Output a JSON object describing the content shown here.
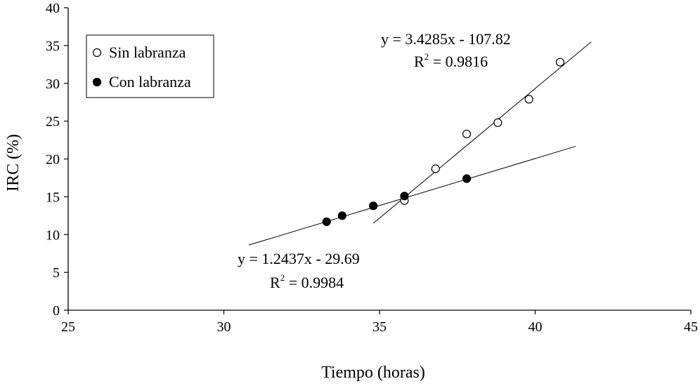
{
  "chart_data": {
    "type": "scatter",
    "xlabel": "Tiempo (horas)",
    "ylabel": "IRC (%)",
    "xlim": [
      25,
      45
    ],
    "ylim": [
      0,
      40
    ],
    "xticks": [
      25,
      30,
      35,
      40,
      45
    ],
    "yticks": [
      0,
      5,
      10,
      15,
      20,
      25,
      30,
      35,
      40
    ],
    "grid": false,
    "legend_position": "top-left",
    "series": [
      {
        "name": "Sin labranza",
        "marker": "open-circle",
        "x": [
          35.8,
          36.8,
          37.8,
          38.8,
          39.8,
          40.8
        ],
        "y": [
          14.5,
          18.7,
          23.3,
          24.8,
          27.9,
          32.8
        ],
        "trendline": {
          "slope": 3.4285,
          "intercept": -107.82,
          "x_range": [
            34.8,
            41.8
          ],
          "equation": "y = 3.4285x - 107.82",
          "r2_prefix": "R",
          "r2_sup": "2",
          "r2_value": " = 0.9816"
        }
      },
      {
        "name": "Con labranza",
        "marker": "filled-circle",
        "x": [
          33.3,
          33.8,
          34.8,
          35.8,
          37.8
        ],
        "y": [
          11.7,
          12.5,
          13.8,
          15.1,
          17.4
        ],
        "trendline": {
          "slope": 1.2437,
          "intercept": -29.69,
          "x_range": [
            30.8,
            41.3
          ],
          "equation": "y = 1.2437x - 29.69",
          "r2_prefix": "R",
          "r2_sup": "2",
          "r2_value": " = 0.9984"
        }
      }
    ]
  }
}
